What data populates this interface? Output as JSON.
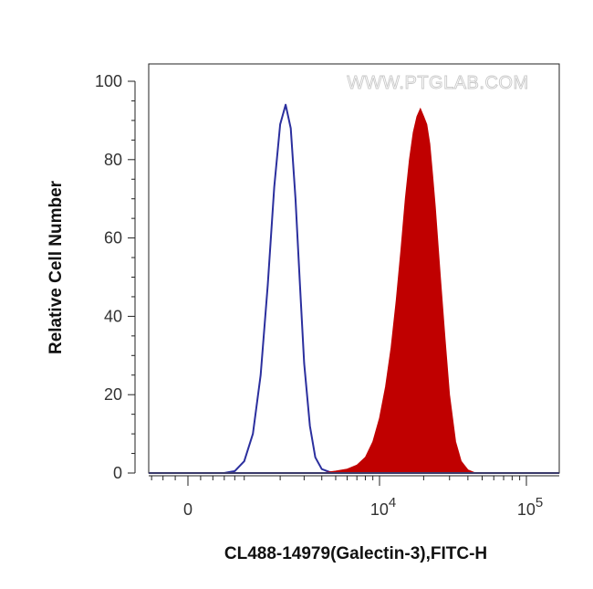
{
  "chart_data": {
    "type": "area",
    "watermark": "WWW.PTGLAB.COM",
    "xlabel": "CL488-14979(Galectin-3),FITC-H",
    "ylabel": "Relative Cell Number",
    "x_scale": "biexponential",
    "ylim": [
      0,
      100
    ],
    "y_ticks": [
      {
        "value": 0,
        "label": "0"
      },
      {
        "value": 20,
        "label": "20"
      },
      {
        "value": 40,
        "label": "40"
      },
      {
        "value": 60,
        "label": "60"
      },
      {
        "value": 80,
        "label": "80"
      },
      {
        "value": 100,
        "label": "100"
      }
    ],
    "x_ticks": [
      {
        "value": 0,
        "base": "0",
        "exp": ""
      },
      {
        "value": 10000,
        "base": "10",
        "exp": "4"
      },
      {
        "value": 100000,
        "base": "10",
        "exp": "5"
      }
    ],
    "grid": false,
    "legend": "none",
    "series": [
      {
        "style": "outline",
        "color": "#2b2f9e",
        "x": [
          600,
          800,
          1000,
          1200,
          1400,
          1600,
          1800,
          2000,
          2200,
          2400,
          2600,
          2800,
          3000,
          3300,
          3600,
          4000,
          4500,
          5000
        ],
        "y": [
          0,
          0.5,
          3,
          10,
          25,
          48,
          73,
          89,
          94,
          88,
          70,
          48,
          28,
          12,
          4,
          1,
          0.3,
          0
        ]
      },
      {
        "style": "filled",
        "color": "#c00000",
        "x": [
          4000,
          5000,
          6000,
          7000,
          8000,
          9000,
          10000,
          11000,
          12000,
          13000,
          14000,
          15000,
          16000,
          17000,
          18000,
          19000,
          20000,
          21000,
          22000,
          23000,
          24000,
          26000,
          28000,
          30000,
          33000,
          36000,
          40000,
          45000
        ],
        "y": [
          0,
          0.5,
          1,
          2,
          4,
          8,
          14,
          22,
          32,
          44,
          57,
          70,
          80,
          87,
          91,
          93,
          91,
          89,
          84,
          76,
          68,
          50,
          34,
          20,
          8,
          3,
          0.8,
          0
        ]
      }
    ]
  }
}
